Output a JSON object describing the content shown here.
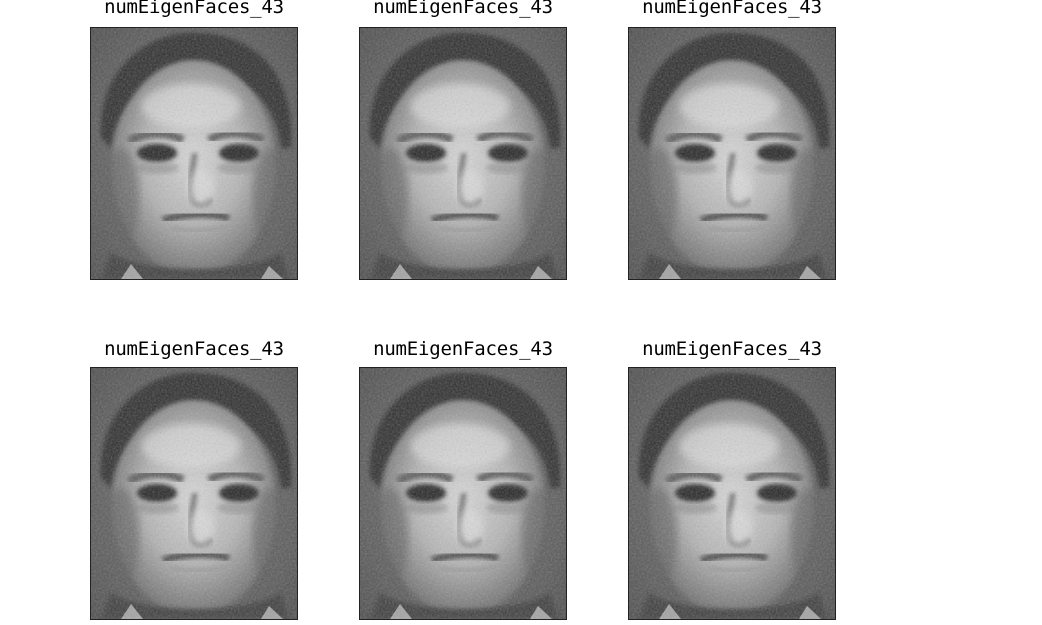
{
  "figure": {
    "images": [
      {
        "title": "numEigenFaces_43",
        "image": "eigenface-reconstruction"
      },
      {
        "title": "numEigenFaces_43",
        "image": "eigenface-reconstruction"
      },
      {
        "title": "numEigenFaces_43",
        "image": "eigenface-reconstruction"
      },
      {
        "title": "numEigenFaces_43",
        "image": "eigenface-reconstruction"
      },
      {
        "title": "numEigenFaces_43",
        "image": "eigenface-reconstruction"
      },
      {
        "title": "numEigenFaces_43",
        "image": "eigenface-reconstruction"
      }
    ]
  }
}
